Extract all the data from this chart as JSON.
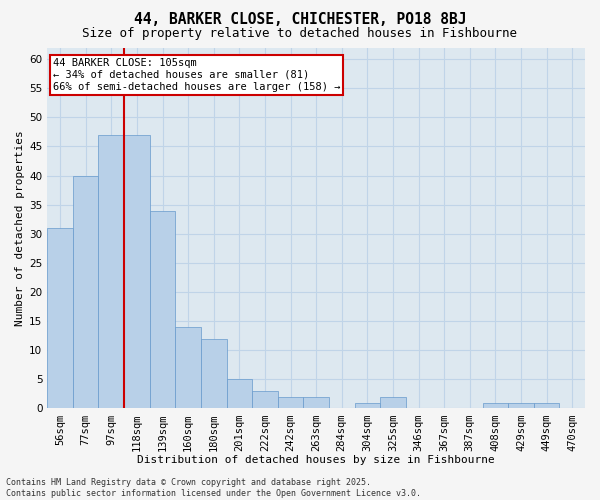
{
  "title1": "44, BARKER CLOSE, CHICHESTER, PO18 8BJ",
  "title2": "Size of property relative to detached houses in Fishbourne",
  "xlabel": "Distribution of detached houses by size in Fishbourne",
  "ylabel": "Number of detached properties",
  "categories": [
    "56sqm",
    "77sqm",
    "97sqm",
    "118sqm",
    "139sqm",
    "160sqm",
    "180sqm",
    "201sqm",
    "222sqm",
    "242sqm",
    "263sqm",
    "284sqm",
    "304sqm",
    "325sqm",
    "346sqm",
    "367sqm",
    "387sqm",
    "408sqm",
    "429sqm",
    "449sqm",
    "470sqm"
  ],
  "values": [
    31,
    40,
    47,
    47,
    34,
    14,
    12,
    5,
    3,
    2,
    2,
    0,
    1,
    2,
    0,
    0,
    0,
    1,
    1,
    1,
    0
  ],
  "bar_color": "#b8d0e8",
  "bar_edge_color": "#6699cc",
  "vline_x_index": 2.5,
  "vline_color": "#cc0000",
  "annotation_text": "44 BARKER CLOSE: 105sqm\n← 34% of detached houses are smaller (81)\n66% of semi-detached houses are larger (158) →",
  "annotation_box_color": "#ffffff",
  "annotation_box_edge": "#cc0000",
  "ylim": [
    0,
    62
  ],
  "yticks": [
    0,
    5,
    10,
    15,
    20,
    25,
    30,
    35,
    40,
    45,
    50,
    55,
    60
  ],
  "grid_color": "#c0d4e8",
  "background_color": "#dde8f0",
  "fig_background": "#f5f5f5",
  "footnote": "Contains HM Land Registry data © Crown copyright and database right 2025.\nContains public sector information licensed under the Open Government Licence v3.0.",
  "title1_fontsize": 10.5,
  "title2_fontsize": 9,
  "axis_label_fontsize": 8,
  "tick_fontsize": 7.5,
  "annot_fontsize": 7.5,
  "footnote_fontsize": 6
}
